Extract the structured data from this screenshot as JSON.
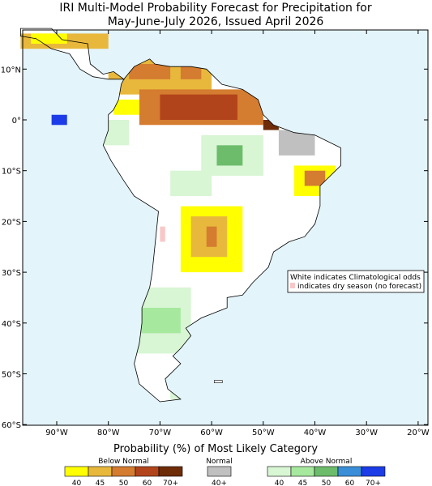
{
  "header": {
    "title": [
      "IRI Multi-Model Probability Forecast for Precipitation for",
      "May-June-July 2026, Issued April 2026"
    ]
  },
  "map": {
    "lat_labels": [
      "10°N",
      "0°",
      "10°S",
      "20°S",
      "30°S",
      "40°S",
      "50°S",
      "60°S"
    ],
    "lon_labels": [
      "90°W",
      "80°W",
      "70°W",
      "60°W",
      "50°W",
      "40°W",
      "30°W",
      "20°W"
    ],
    "note": [
      "White indicates Climatological odds",
      "indicates dry season (no forecast)"
    ],
    "ocean_color": "#e3f4fa",
    "dry_season_color": "#f8c8c8"
  },
  "legend": {
    "title": "Probability (%) of Most Likely Category",
    "groups": [
      {
        "name": "Below Normal",
        "colors": [
          "#ffff00",
          "#e8b83c",
          "#d47c30",
          "#b2441c",
          "#6e2c08"
        ],
        "labels": [
          "40",
          "45",
          "50",
          "60",
          "70+"
        ]
      },
      {
        "name": "Normal",
        "colors": [
          "#c0c0c0"
        ],
        "labels": [
          "40+"
        ]
      },
      {
        "name": "Above Normal",
        "colors": [
          "#d8f5d4",
          "#a6e89e",
          "#6cbc6c",
          "#3a8ed8",
          "#1c3ce8"
        ],
        "labels": [
          "40",
          "45",
          "50",
          "60",
          "70+"
        ]
      }
    ]
  }
}
